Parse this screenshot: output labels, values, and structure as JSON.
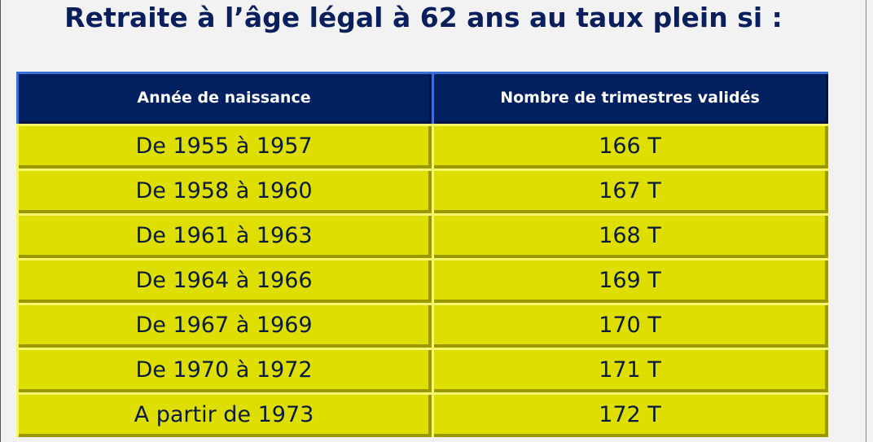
{
  "header": {
    "title": "Retraite à l’âge légal à 62 ans au taux plein si :"
  },
  "table": {
    "columns": [
      "Année de naissance",
      "Nombre de trimestres validés"
    ],
    "rows": [
      [
        "De 1955 à 1957",
        "166 T"
      ],
      [
        "De 1958 à 1960",
        "167 T"
      ],
      [
        "De 1961 à 1963",
        "168 T"
      ],
      [
        "De 1964 à 1966",
        "169 T"
      ],
      [
        "De 1967 à 1969",
        "170 T"
      ],
      [
        "De 1970 à 1972",
        "171 T"
      ],
      [
        "A partir de 1973",
        "172 T"
      ]
    ]
  }
}
